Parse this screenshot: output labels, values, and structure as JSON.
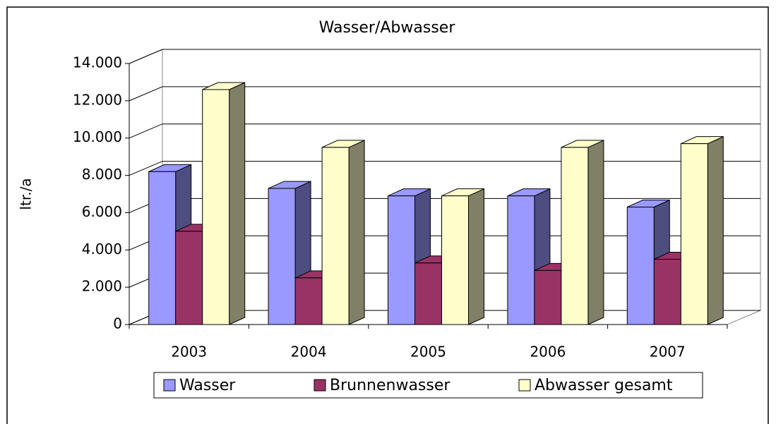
{
  "chart_data": {
    "type": "bar3d",
    "title": "Wasser/Abwasser",
    "y_label": "ltr./a",
    "categories": [
      "2003",
      "2004",
      "2005",
      "2006",
      "2007"
    ],
    "series": [
      {
        "name": "Wasser",
        "color": "#9999ff",
        "side": "#4d4d80",
        "values": [
          8200,
          7300,
          6900,
          6900,
          6300
        ]
      },
      {
        "name": "Brunnenwasser",
        "color": "#993366",
        "side": "#4d1a33",
        "values": [
          5000,
          2500,
          3300,
          2900,
          3500
        ]
      },
      {
        "name": "Abwasser gesamt",
        "color": "#ffffcc",
        "side": "#808066",
        "values": [
          12600,
          9500,
          6900,
          9500,
          9700
        ]
      }
    ],
    "ylim": [
      0,
      14000
    ],
    "yticks": [
      {
        "value": 0,
        "label": "0"
      },
      {
        "value": 2000,
        "label": "2.000"
      },
      {
        "value": 4000,
        "label": "4.000"
      },
      {
        "value": 6000,
        "label": "6.000"
      },
      {
        "value": 8000,
        "label": "8.000"
      },
      {
        "value": 10000,
        "label": "10.000"
      },
      {
        "value": 12000,
        "label": "12.000"
      },
      {
        "value": 14000,
        "label": "14.000"
      }
    ],
    "grid": true,
    "legend": "bottom"
  }
}
